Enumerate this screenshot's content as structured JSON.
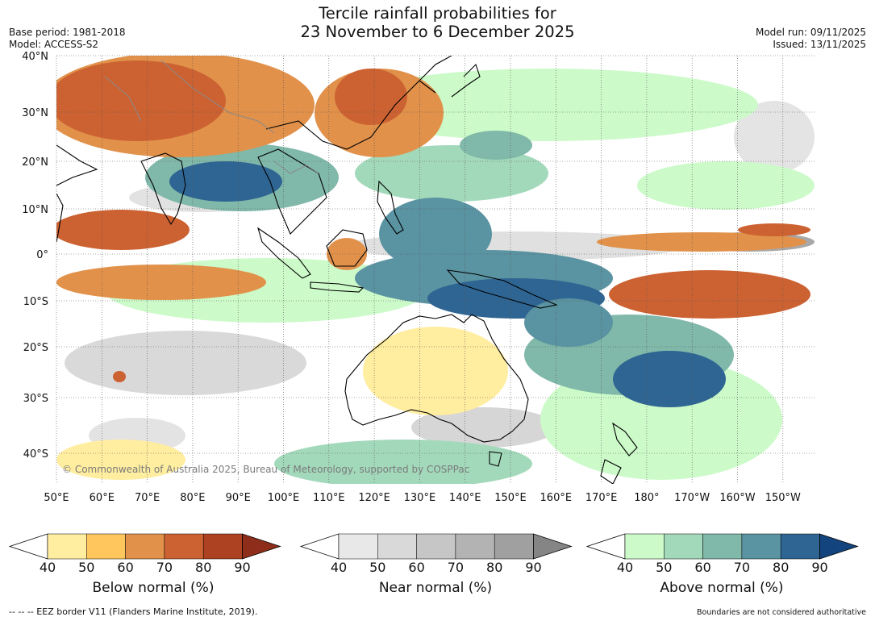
{
  "header": {
    "title_line1": "Tercile rainfall probabilities for",
    "title_line2": "23 November to 6 December 2025",
    "base_period": "Base period: 1981-2018",
    "model": "Model: ACCESS-S2",
    "model_run": "Model run: 09/11/2025",
    "issued": "Issued: 13/11/2025"
  },
  "map": {
    "lat_labels": [
      "40°N",
      "30°N",
      "20°N",
      "10°N",
      "0°",
      "10°S",
      "20°S",
      "30°S",
      "40°S"
    ],
    "lon_labels": [
      "50°E",
      "60°E",
      "70°E",
      "80°E",
      "90°E",
      "100°E",
      "110°E",
      "120°E",
      "130°E",
      "140°E",
      "150°E",
      "160°E",
      "170°E",
      "180°",
      "170°W",
      "160°W",
      "150°W"
    ],
    "copyright": "© Commonwealth of Australia 2025, Bureau of Meteorology, supported by COSPPac"
  },
  "legends": [
    {
      "name": "below",
      "label": "Below normal (%)",
      "ticks": [
        "40",
        "50",
        "60",
        "70",
        "80",
        "90"
      ],
      "colors": [
        "#ffeda0",
        "#fec65c",
        "#e1914a",
        "#cc6232",
        "#ad4223",
        "#8e2e1a"
      ]
    },
    {
      "name": "near",
      "label": "Near normal (%)",
      "ticks": [
        "40",
        "50",
        "60",
        "70",
        "80",
        "90"
      ],
      "colors": [
        "#e8e8e8",
        "#d9d9d9",
        "#c6c6c6",
        "#b3b3b3",
        "#a0a0a0",
        "#858585"
      ]
    },
    {
      "name": "above",
      "label": "Above normal (%)",
      "ticks": [
        "40",
        "50",
        "60",
        "70",
        "80",
        "90"
      ],
      "colors": [
        "#ccfac9",
        "#a3d9bb",
        "#80b8a9",
        "#5a93a1",
        "#2f6593",
        "#13447d"
      ]
    }
  ],
  "footer": {
    "eez": "--  --  -- EEZ border V11 (Flanders Marine Institute, 2019).",
    "disclaimer": "Boundaries are not considered authoritative"
  }
}
